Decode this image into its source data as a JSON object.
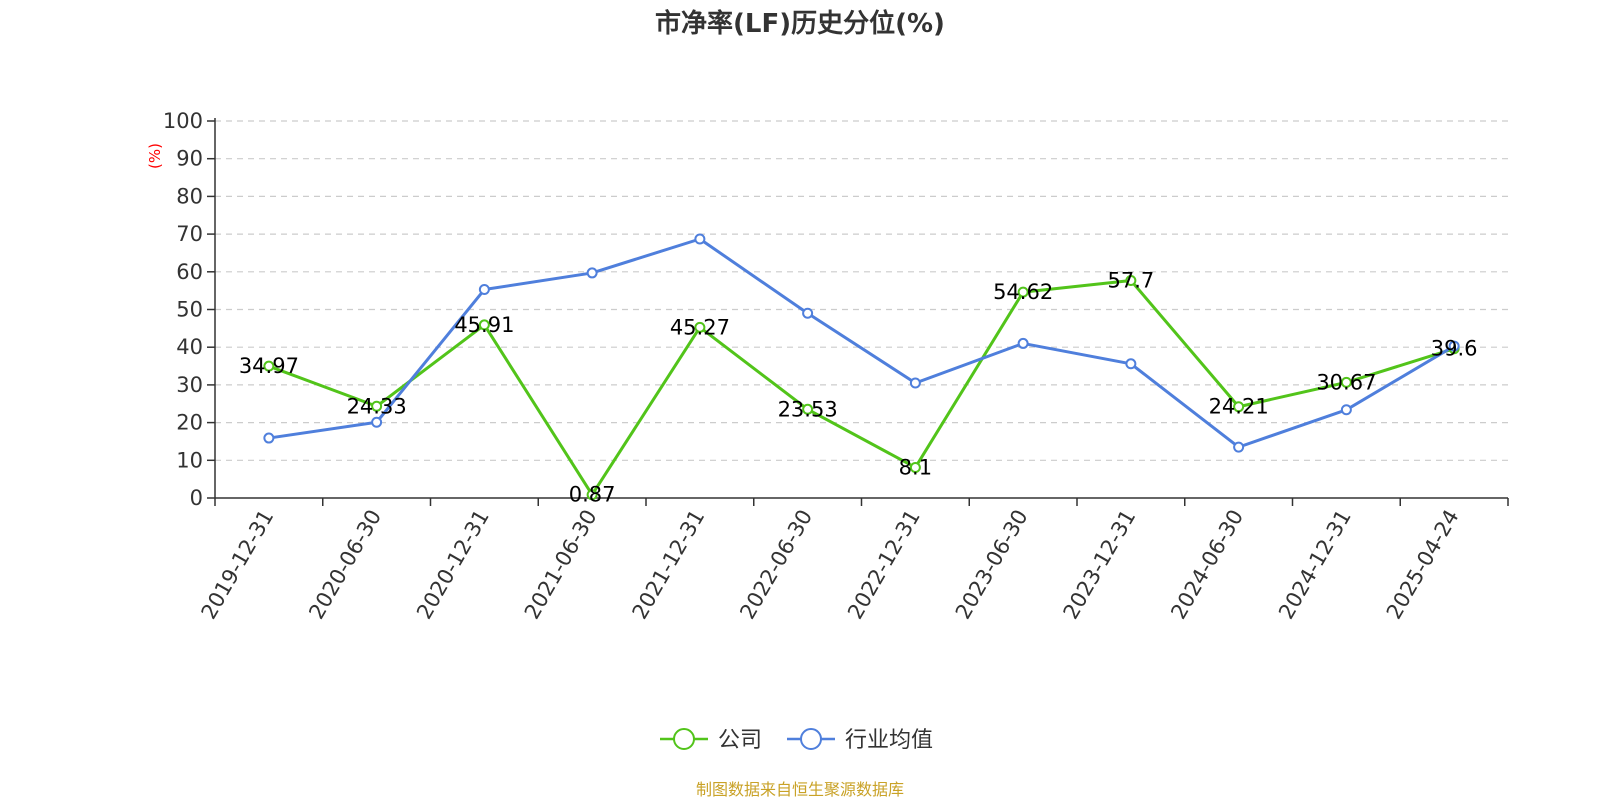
{
  "chart_data": {
    "type": "line",
    "title": "市净率(LF)历史分位(%)",
    "ylabel": "(%)",
    "ylim": [
      0,
      100
    ],
    "yticks": [
      0,
      10,
      20,
      30,
      40,
      50,
      60,
      70,
      80,
      90,
      100
    ],
    "grid": true,
    "legend_position": "bottom-center",
    "categories": [
      "2019-12-31",
      "2020-06-30",
      "2020-12-31",
      "2021-06-30",
      "2021-12-31",
      "2022-06-30",
      "2022-12-31",
      "2023-06-30",
      "2023-12-31",
      "2024-06-30",
      "2024-12-31",
      "2025-04-24"
    ],
    "series": [
      {
        "name": "公司",
        "color": "#52c41a",
        "values": [
          34.97,
          24.33,
          45.91,
          0.87,
          45.27,
          23.53,
          8.1,
          54.62,
          57.7,
          24.21,
          30.67,
          39.6
        ],
        "data_labels": [
          "34.97",
          "24.33",
          "45.91",
          "0.87",
          "45.27",
          "23.53",
          "8.1",
          "54.62",
          "57.7",
          "24.21",
          "30.67",
          "39.6"
        ]
      },
      {
        "name": "行业均值",
        "color": "#4f7fdc",
        "values": [
          15.9,
          20.1,
          55.3,
          59.7,
          68.7,
          49.0,
          30.5,
          41.0,
          35.6,
          13.5,
          23.4,
          40.3
        ]
      }
    ],
    "ylabel_color": "#ff0000"
  },
  "source_text": "制图数据来自恒生聚源数据库",
  "source_color": "#c9a227"
}
